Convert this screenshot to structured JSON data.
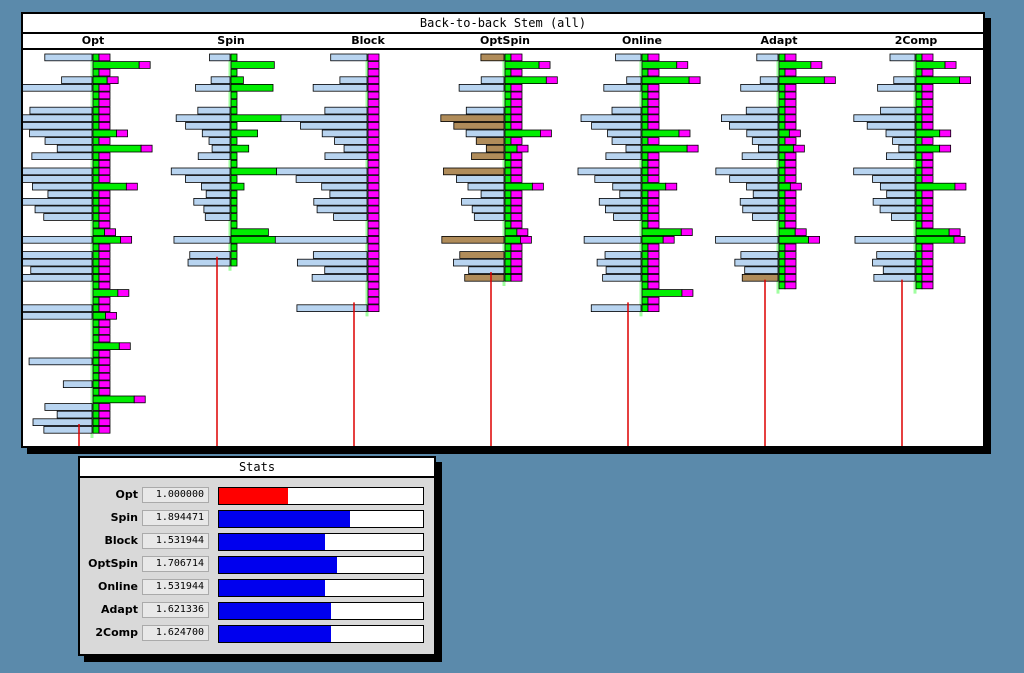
{
  "main_window": {
    "title": "Back-to-back Stem (all)",
    "columns": [
      {
        "label": "Opt"
      },
      {
        "label": "Spin"
      },
      {
        "label": "Block"
      },
      {
        "label": "OptSpin"
      },
      {
        "label": "Online"
      },
      {
        "label": "Adapt"
      },
      {
        "label": "2Comp"
      }
    ]
  },
  "colors": {
    "left_bar": "#b8d4f0",
    "left_bar_alt": "#b08c5a",
    "right_bar_green": "#00ee00",
    "right_bar_magenta": "#ff00ff",
    "stem_line": "#a0ffa0",
    "baseline": "#dd0000",
    "stats_fill_primary": "#ff0000",
    "stats_fill": "#0000ee"
  },
  "stats_window": {
    "title": "Stats",
    "rows": [
      {
        "name": "Opt",
        "value": "1.000000",
        "ratio": 1.0
      },
      {
        "name": "Spin",
        "value": "1.894471",
        "ratio": 1.894471
      },
      {
        "name": "Block",
        "value": "1.531944",
        "ratio": 1.531944
      },
      {
        "name": "OptSpin",
        "value": "1.706714",
        "ratio": 1.706714
      },
      {
        "name": "Online",
        "value": "1.531944",
        "ratio": 1.531944
      },
      {
        "name": "Adapt",
        "value": "1.621336",
        "ratio": 1.621336
      },
      {
        "name": "2Comp",
        "value": "1.624700",
        "ratio": 1.6247
      }
    ]
  }
}
